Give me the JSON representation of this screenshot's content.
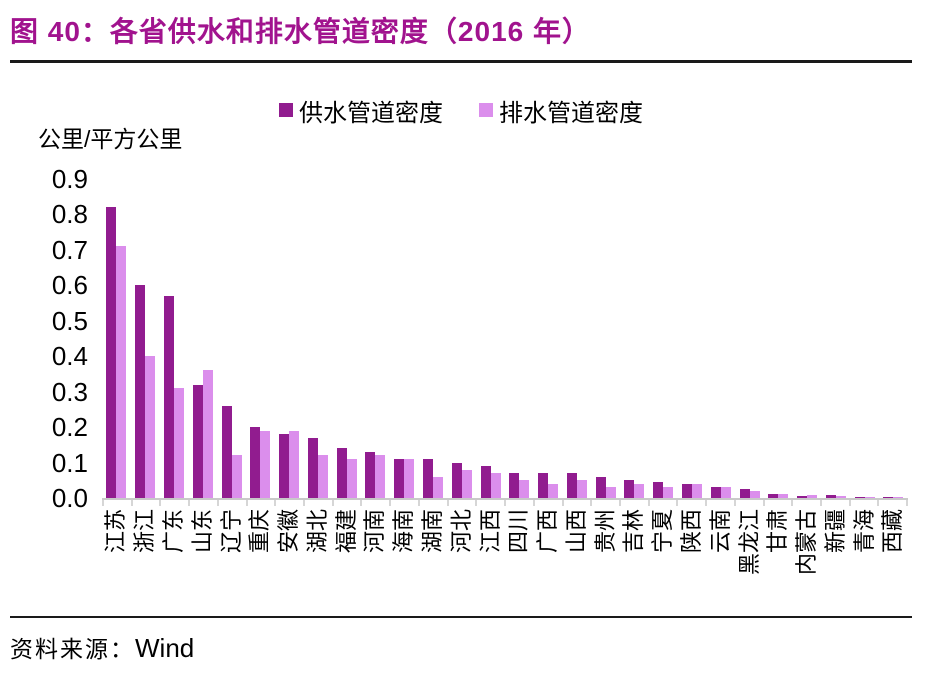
{
  "figure": {
    "source_prefix": "资料来源：",
    "source_name": "Wind"
  },
  "colors": {
    "title": "#A1138E",
    "rule": "#1A1A1A",
    "axis_gray": "#C9C9C9",
    "supply_series": "#911C8F",
    "drainage_series": "#DB8EEC"
  },
  "chart_data": {
    "type": "bar",
    "title": "图 40：各省供水和排水管道密度（2016 年）",
    "unit_label": "公里/平方公里",
    "xlabel": "",
    "ylabel": "公里/平方公里",
    "ylim": [
      0,
      0.9
    ],
    "yticks": [
      "0.9",
      "0.8",
      "0.7",
      "0.6",
      "0.5",
      "0.4",
      "0.3",
      "0.2",
      "0.1",
      "0.0"
    ],
    "grid": false,
    "legend_position": "top-center",
    "x_tick_label_rotation": 90,
    "categories": [
      "江苏",
      "浙江",
      "广东",
      "山东",
      "辽宁",
      "重庆",
      "安徽",
      "湖北",
      "福建",
      "河南",
      "海南",
      "湖南",
      "河北",
      "江西",
      "四川",
      "广西",
      "山西",
      "贵州",
      "吉林",
      "宁夏",
      "陕西",
      "云南",
      "黑龙江",
      "甘肃",
      "内蒙古",
      "新疆",
      "青海",
      "西藏"
    ],
    "series": [
      {
        "name": "供水管道密度",
        "color": "#911C8F",
        "values": [
          0.82,
          0.6,
          0.57,
          0.32,
          0.26,
          0.2,
          0.18,
          0.17,
          0.14,
          0.13,
          0.11,
          0.11,
          0.1,
          0.09,
          0.07,
          0.07,
          0.07,
          0.06,
          0.05,
          0.045,
          0.04,
          0.03,
          0.025,
          0.01,
          0.005,
          0.008,
          0.004,
          0.002
        ]
      },
      {
        "name": "排水管道密度",
        "color": "#DB8EEC",
        "values": [
          0.71,
          0.4,
          0.31,
          0.36,
          0.12,
          0.19,
          0.19,
          0.12,
          0.11,
          0.12,
          0.11,
          0.06,
          0.08,
          0.07,
          0.05,
          0.04,
          0.05,
          0.03,
          0.04,
          0.03,
          0.04,
          0.03,
          0.02,
          0.01,
          0.008,
          0.006,
          0.003,
          0.002
        ]
      }
    ]
  }
}
